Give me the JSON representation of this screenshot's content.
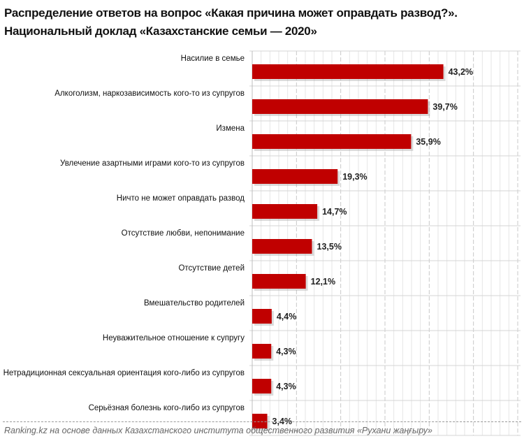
{
  "title": {
    "line1": "Распределение ответов на вопрос «Какая  причина может оправдать развод?».",
    "line2": "Национальный доклад «Казахстанские семьи — 2020»"
  },
  "chart_data": {
    "type": "bar",
    "orientation": "horizontal",
    "title": "Распределение ответов на вопрос «Какая  причина может оправдать развод?». Национальный доклад «Казахстанские семьи — 2020»",
    "categories": [
      "Насилие в семье",
      "Алкоголизм, наркозависимость кого-то из супругов",
      "Измена",
      "Увлечение азартными играми кого-то из супругов",
      "Ничто не может оправдать развод",
      "Отсутствие любви, непонимание",
      "Отсутствие детей",
      "Вмешательство родителей",
      "Неуважительное отношение к супругу",
      "Нетрадиционная сексуальная ориентация кого-либо из супругов",
      "Серьёзная болезнь кого-либо из супругов"
    ],
    "values": [
      43.2,
      39.7,
      35.9,
      19.3,
      14.7,
      13.5,
      12.1,
      4.4,
      4.3,
      4.3,
      3.4
    ],
    "value_labels": [
      "43,2%",
      "39,7%",
      "35,9%",
      "19,3%",
      "14,7%",
      "13,5%",
      "12,1%",
      "4,4%",
      "4,3%",
      "4,3%",
      "3,4%"
    ],
    "xlim": [
      0,
      60
    ],
    "grid": true,
    "bar_color": "#c00000"
  },
  "footer": {
    "source": "Ranking.kz на основе данных Казахстанского института общественного развития «Рухани жаңғыру»"
  }
}
